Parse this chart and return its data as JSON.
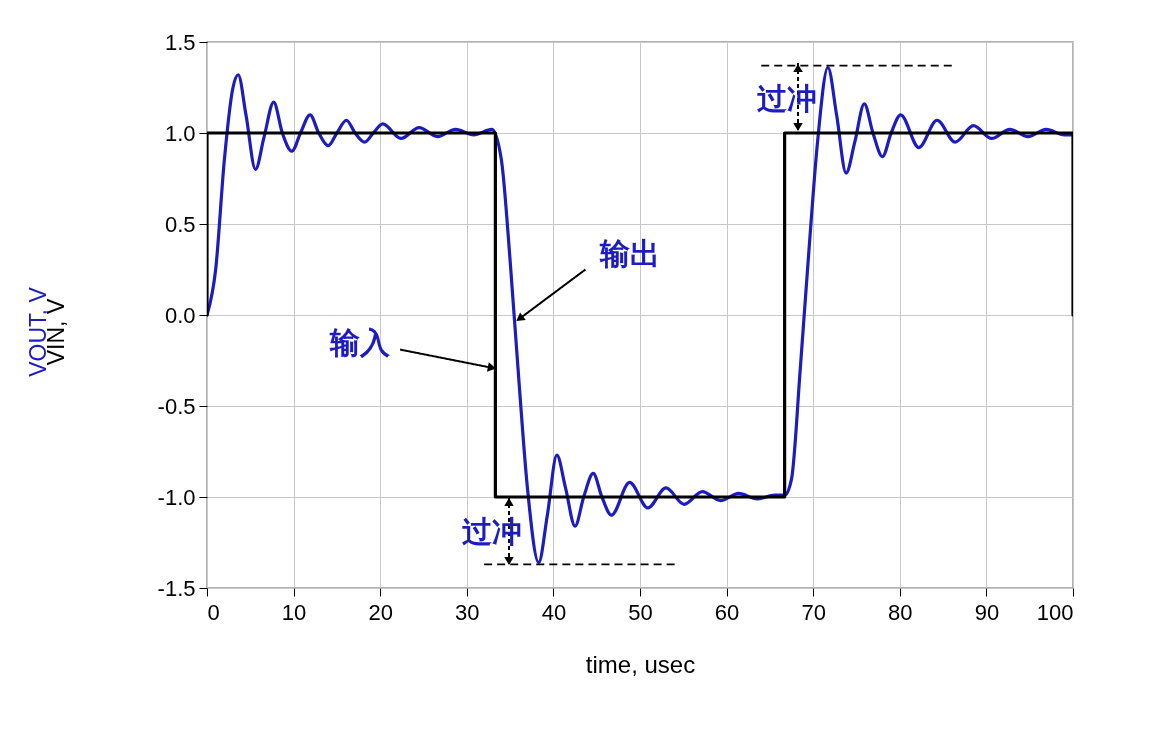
{
  "chart_data": {
    "type": "line",
    "xlabel": "time, usec",
    "x": [
      0,
      1,
      2,
      3,
      3.6,
      4.5,
      5.6,
      6.6,
      7.7,
      8.7,
      9.8,
      10.8,
      11.9,
      12.9,
      14,
      15,
      16.1,
      17.1,
      18.2,
      19.2,
      20.3,
      22.4,
      24.5,
      26.6,
      28.7,
      30.8,
      32.9,
      34,
      35,
      36,
      37,
      38.3,
      39.3,
      40.4,
      41.4,
      42.5,
      43.5,
      44.6,
      45.6,
      46.7,
      48.8,
      50.9,
      53,
      55.1,
      57.2,
      59.3,
      61.4,
      63.5,
      65.6,
      66.7,
      67.5,
      68.5,
      69.5,
      70.5,
      71.7,
      72.7,
      73.8,
      74.8,
      75.9,
      76.9,
      78,
      79,
      80.1,
      82.2,
      84.3,
      86.4,
      88.5,
      90.6,
      92.7,
      94.8,
      96.9,
      99,
      100
    ],
    "series": [
      {
        "name": "VOUT, V",
        "color": "#1c1cc0",
        "values": [
          0,
          0.25,
          0.85,
          1.25,
          1.32,
          1.1,
          0.8,
          0.98,
          1.17,
          1.0,
          0.9,
          1.0,
          1.1,
          1.0,
          0.93,
          1.0,
          1.07,
          1.0,
          0.95,
          1.0,
          1.05,
          0.97,
          1.03,
          0.98,
          1.02,
          0.99,
          1.02,
          0.85,
          0.3,
          -0.35,
          -0.95,
          -1.36,
          -1.1,
          -0.77,
          -0.95,
          -1.16,
          -1.0,
          -0.87,
          -1.0,
          -1.1,
          -0.92,
          -1.06,
          -0.95,
          -1.04,
          -0.97,
          -1.02,
          -0.98,
          -1.01,
          -0.99,
          -0.99,
          -0.9,
          -0.3,
          0.35,
          0.95,
          1.36,
          1.1,
          0.78,
          0.95,
          1.16,
          1.0,
          0.87,
          1.0,
          1.1,
          0.92,
          1.07,
          0.95,
          1.04,
          0.97,
          1.02,
          0.98,
          1.02,
          0.99,
          0.99
        ]
      },
      {
        "name": "VIN, V",
        "color": "#000000",
        "x": [
          0,
          0,
          33.3,
          33.3,
          66.7,
          66.7,
          100,
          100
        ],
        "values": [
          0,
          1,
          1,
          -1,
          -1,
          1,
          1,
          0
        ]
      },
      {
        "type": "line",
        "color": "#000000",
        "line_style": "dashed",
        "x": [
          64,
          86
        ],
        "values": [
          1.37,
          1.37
        ]
      },
      {
        "type": "line",
        "color": "#000000",
        "line_style": "dashed",
        "x": [
          32,
          54
        ],
        "values": [
          -1.37,
          -1.37
        ]
      }
    ],
    "xlim": [
      0,
      100
    ],
    "ylim": [
      -1.5,
      1.5
    ],
    "xticks": [
      0,
      10,
      20,
      30,
      40,
      50,
      60,
      70,
      80,
      90,
      100
    ],
    "yticks": [
      {
        "value": -1.5,
        "label": "-1.5"
      },
      {
        "value": -1,
        "label": "-1.0"
      },
      {
        "value": -0.5,
        "label": "-0.5"
      },
      {
        "value": 0,
        "label": "0.0"
      },
      {
        "value": 0.5,
        "label": "0.5"
      },
      {
        "value": 1,
        "label": "1.0"
      },
      {
        "value": 1.5,
        "label": "1.5"
      }
    ],
    "grid": true,
    "legend": "left",
    "annotations": [
      "过冲",
      {
        "text": "输出",
        "x": 36.1,
        "y": -0.02
      },
      {
        "text": "输入",
        "x": 32.9,
        "y": -0.29
      },
      "过冲"
    ]
  }
}
